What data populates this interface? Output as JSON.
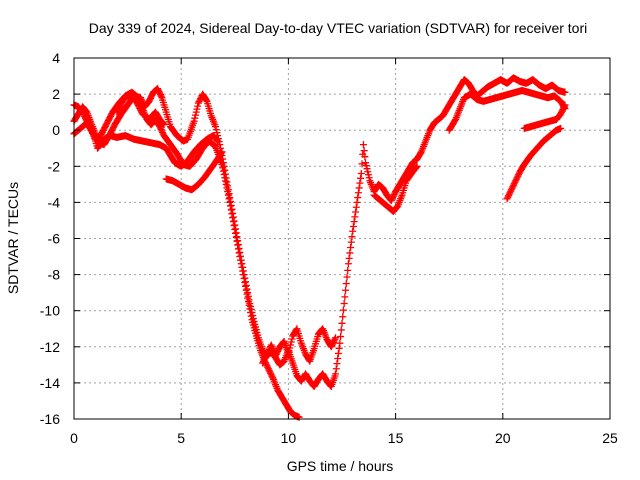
{
  "chart_data": {
    "type": "scatter",
    "title": "Day 339 of 2024, Sidereal Day-to-day VTEC variation (SDTVAR) for receiver tori",
    "xlabel": "GPS time / hours",
    "ylabel": "SDTVAR / TECUs",
    "xlim": [
      0,
      25
    ],
    "ylim": [
      -16,
      4
    ],
    "xticks": [
      "0",
      "5",
      "10",
      "15",
      "20",
      "25"
    ],
    "yticks": [
      "4",
      "2",
      "0",
      "-2",
      "-4",
      "-6",
      "-8",
      "-10",
      "-12",
      "-14",
      "-16"
    ],
    "grid": true,
    "marker": "+",
    "color": "#ff0000",
    "series": [
      {
        "name": "",
        "points": [
          [
            0.0,
            1.4
          ],
          [
            0.2,
            1.3
          ],
          [
            0.4,
            1.0
          ],
          [
            0.6,
            0.5
          ],
          [
            0.8,
            0.0
          ],
          [
            1.0,
            -0.5
          ],
          [
            1.2,
            -0.4
          ],
          [
            1.5,
            0.3
          ],
          [
            1.8,
            1.0
          ],
          [
            2.1,
            1.5
          ],
          [
            2.4,
            1.9
          ],
          [
            2.7,
            2.1
          ],
          [
            3.0,
            1.8
          ],
          [
            3.2,
            1.2
          ],
          [
            3.4,
            0.6
          ],
          [
            3.6,
            0.3
          ],
          [
            3.8,
            0.6
          ],
          [
            4.0,
            0.2
          ],
          [
            4.2,
            -0.3
          ],
          [
            4.5,
            -0.8
          ],
          [
            4.8,
            -1.3
          ],
          [
            5.1,
            -1.9
          ],
          [
            5.4,
            -2.0
          ],
          [
            5.7,
            -1.6
          ],
          [
            6.0,
            -1.0
          ],
          [
            6.3,
            -0.6
          ],
          [
            6.6,
            -0.9
          ],
          [
            6.9,
            -1.9
          ],
          [
            7.1,
            -3.0
          ],
          [
            7.3,
            -4.2
          ],
          [
            7.5,
            -5.5
          ],
          [
            7.7,
            -6.8
          ],
          [
            7.9,
            -8.0
          ],
          [
            8.1,
            -9.3
          ],
          [
            8.3,
            -10.5
          ],
          [
            8.5,
            -11.4
          ],
          [
            8.7,
            -12.2
          ],
          [
            8.9,
            -12.8
          ],
          [
            9.1,
            -13.3
          ],
          [
            9.3,
            -13.8
          ],
          [
            9.5,
            -14.4
          ],
          [
            9.7,
            -14.8
          ],
          [
            9.9,
            -15.2
          ],
          [
            10.1,
            -15.6
          ],
          [
            10.3,
            -15.8
          ],
          [
            10.5,
            -15.9
          ]
        ]
      },
      {
        "name": "",
        "points": [
          [
            0.0,
            0.5
          ],
          [
            0.2,
            0.9
          ],
          [
            0.4,
            1.3
          ],
          [
            0.6,
            1.0
          ],
          [
            0.8,
            0.4
          ],
          [
            1.0,
            -0.2
          ],
          [
            1.2,
            -0.7
          ],
          [
            1.4,
            -0.8
          ],
          [
            1.6,
            -0.4
          ],
          [
            1.9,
            0.3
          ],
          [
            2.2,
            0.9
          ],
          [
            2.5,
            1.4
          ],
          [
            2.8,
            1.9
          ],
          [
            3.1,
            1.8
          ],
          [
            3.3,
            1.3
          ],
          [
            3.5,
            1.6
          ],
          [
            3.7,
            2.1
          ],
          [
            3.9,
            2.3
          ],
          [
            4.1,
            1.8
          ],
          [
            4.3,
            1.0
          ],
          [
            4.5,
            0.2
          ],
          [
            4.8,
            -0.3
          ],
          [
            5.1,
            -0.6
          ],
          [
            5.3,
            -0.5
          ],
          [
            5.6,
            0.5
          ],
          [
            5.8,
            1.5
          ],
          [
            6.0,
            2.0
          ],
          [
            6.2,
            1.6
          ],
          [
            6.4,
            0.8
          ],
          [
            6.6,
            0.2
          ],
          [
            6.8,
            -0.8
          ],
          [
            7.0,
            -2.0
          ],
          [
            7.2,
            -3.3
          ],
          [
            7.4,
            -4.6
          ],
          [
            7.6,
            -5.9
          ],
          [
            7.8,
            -7.2
          ],
          [
            8.0,
            -8.4
          ],
          [
            8.2,
            -9.6
          ],
          [
            8.4,
            -10.6
          ],
          [
            8.6,
            -11.5
          ],
          [
            8.8,
            -12.2
          ],
          [
            9.0,
            -12.5
          ],
          [
            9.2,
            -12.3
          ],
          [
            9.4,
            -12.6
          ],
          [
            9.6,
            -13.0
          ],
          [
            9.8,
            -12.8
          ],
          [
            10.0,
            -12.2
          ],
          [
            10.2,
            -12.9
          ],
          [
            10.4,
            -13.6
          ],
          [
            10.6,
            -13.9
          ],
          [
            10.8,
            -13.5
          ],
          [
            11.0,
            -13.9
          ],
          [
            11.2,
            -14.2
          ],
          [
            11.4,
            -13.8
          ],
          [
            11.6,
            -13.5
          ],
          [
            11.8,
            -13.9
          ],
          [
            12.0,
            -14.2
          ],
          [
            12.2,
            -13.5
          ],
          [
            12.4,
            -11.8
          ],
          [
            12.6,
            -9.6
          ],
          [
            12.8,
            -7.4
          ],
          [
            13.0,
            -5.6
          ],
          [
            13.2,
            -4.0
          ],
          [
            13.4,
            -2.4
          ],
          [
            13.5,
            -0.8
          ],
          [
            13.6,
            -1.8
          ],
          [
            13.8,
            -2.8
          ],
          [
            14.0,
            -3.4
          ],
          [
            14.2,
            -3.0
          ],
          [
            14.4,
            -3.2
          ],
          [
            14.6,
            -3.6
          ],
          [
            14.8,
            -3.9
          ],
          [
            15.0,
            -3.4
          ],
          [
            15.2,
            -3.0
          ],
          [
            15.4,
            -2.6
          ],
          [
            15.6,
            -2.2
          ],
          [
            15.8,
            -1.8
          ],
          [
            16.0,
            -1.6
          ],
          [
            16.2,
            -1.2
          ],
          [
            16.4,
            -0.6
          ],
          [
            16.6,
            0.0
          ],
          [
            16.8,
            0.4
          ],
          [
            17.0,
            0.6
          ],
          [
            17.2,
            0.8
          ],
          [
            17.4,
            1.2
          ],
          [
            17.6,
            1.6
          ],
          [
            17.8,
            2.0
          ],
          [
            18.0,
            2.4
          ],
          [
            18.2,
            2.8
          ],
          [
            18.4,
            2.6
          ],
          [
            18.6,
            2.2
          ],
          [
            18.8,
            1.9
          ],
          [
            19.0,
            2.1
          ],
          [
            19.3,
            2.4
          ],
          [
            19.6,
            2.6
          ],
          [
            19.9,
            2.8
          ],
          [
            20.2,
            2.6
          ],
          [
            20.5,
            2.9
          ],
          [
            20.8,
            2.7
          ],
          [
            21.1,
            2.6
          ],
          [
            21.4,
            2.8
          ],
          [
            21.7,
            2.5
          ],
          [
            22.0,
            2.3
          ],
          [
            22.3,
            2.5
          ],
          [
            22.6,
            2.2
          ],
          [
            22.9,
            2.1
          ]
        ]
      },
      {
        "name": "",
        "points": [
          [
            0.0,
            -0.2
          ],
          [
            0.3,
            0.1
          ],
          [
            0.6,
            0.4
          ],
          [
            0.9,
            -0.2
          ],
          [
            1.1,
            -1.0
          ],
          [
            1.4,
            -0.5
          ],
          [
            1.7,
            -0.3
          ],
          [
            2.0,
            -0.4
          ],
          [
            2.4,
            -0.3
          ],
          [
            2.8,
            -0.5
          ],
          [
            3.2,
            -0.6
          ],
          [
            3.6,
            -0.7
          ],
          [
            4.0,
            -0.8
          ],
          [
            4.3,
            -1.0
          ],
          [
            4.5,
            -1.4
          ],
          [
            4.7,
            -1.8
          ],
          [
            5.0,
            -2.0
          ],
          [
            5.3,
            -1.7
          ],
          [
            5.6,
            -1.2
          ],
          [
            5.9,
            -0.8
          ],
          [
            6.2,
            -0.5
          ],
          [
            6.5,
            -0.3
          ],
          [
            6.7,
            -0.6
          ]
        ]
      },
      {
        "name": "",
        "points": [
          [
            2.0,
            1.0
          ],
          [
            2.3,
            1.7
          ],
          [
            2.6,
            2.0
          ],
          [
            2.9,
            1.6
          ],
          [
            3.2,
            0.9
          ],
          [
            3.5,
            0.6
          ],
          [
            3.8,
            1.0
          ],
          [
            4.0,
            0.6
          ],
          [
            4.2,
            0.3
          ]
        ]
      },
      {
        "name": "",
        "points": [
          [
            4.3,
            -2.7
          ],
          [
            4.6,
            -2.8
          ],
          [
            4.9,
            -3.0
          ],
          [
            5.2,
            -3.2
          ],
          [
            5.5,
            -3.3
          ],
          [
            5.8,
            -3.0
          ],
          [
            6.1,
            -2.6
          ],
          [
            6.4,
            -2.1
          ],
          [
            6.7,
            -1.6
          ],
          [
            6.9,
            -1.2
          ]
        ]
      },
      {
        "name": "",
        "points": [
          [
            8.8,
            -12.9
          ],
          [
            9.0,
            -12.4
          ],
          [
            9.2,
            -11.9
          ],
          [
            9.4,
            -12.5
          ],
          [
            9.6,
            -12.0
          ],
          [
            9.8,
            -11.7
          ],
          [
            10.0,
            -12.4
          ],
          [
            10.2,
            -11.4
          ],
          [
            10.4,
            -11.0
          ],
          [
            10.6,
            -11.8
          ],
          [
            10.8,
            -12.4
          ],
          [
            11.0,
            -12.8
          ],
          [
            11.2,
            -12.1
          ],
          [
            11.4,
            -11.3
          ],
          [
            11.6,
            -11.0
          ],
          [
            11.8,
            -11.6
          ],
          [
            12.0,
            -12.0
          ],
          [
            12.2,
            -11.5
          ]
        ]
      },
      {
        "name": "",
        "points": [
          [
            14.0,
            -3.6
          ],
          [
            14.3,
            -3.9
          ],
          [
            14.6,
            -4.2
          ],
          [
            14.9,
            -4.5
          ],
          [
            15.1,
            -4.2
          ],
          [
            15.3,
            -3.6
          ],
          [
            15.5,
            -2.8
          ],
          [
            15.8,
            -2.3
          ],
          [
            16.0,
            -2.0
          ]
        ]
      },
      {
        "name": "",
        "points": [
          [
            17.5,
            0.0
          ],
          [
            17.8,
            0.6
          ],
          [
            18.0,
            1.2
          ],
          [
            18.2,
            1.8
          ],
          [
            18.5,
            2.0
          ],
          [
            18.8,
            1.7
          ],
          [
            19.1,
            1.6
          ],
          [
            19.4,
            1.7
          ],
          [
            19.7,
            1.8
          ],
          [
            20.0,
            1.9
          ],
          [
            20.3,
            2.0
          ],
          [
            20.6,
            2.1
          ],
          [
            20.9,
            2.2
          ],
          [
            21.2,
            2.1
          ],
          [
            21.5,
            2.0
          ],
          [
            21.8,
            1.9
          ],
          [
            22.1,
            1.8
          ],
          [
            22.4,
            1.9
          ],
          [
            22.7,
            1.6
          ],
          [
            22.9,
            1.2
          ]
        ]
      },
      {
        "name": "",
        "points": [
          [
            20.2,
            -3.8
          ],
          [
            20.4,
            -3.3
          ],
          [
            20.6,
            -2.8
          ],
          [
            20.8,
            -2.3
          ],
          [
            21.0,
            -1.9
          ],
          [
            21.3,
            -1.4
          ],
          [
            21.6,
            -1.0
          ],
          [
            21.9,
            -0.6
          ],
          [
            22.2,
            -0.3
          ],
          [
            22.5,
            0.0
          ],
          [
            22.7,
            0.1
          ]
        ]
      },
      {
        "name": "",
        "points": [
          [
            21.0,
            0.1
          ],
          [
            21.3,
            0.2
          ],
          [
            21.6,
            0.3
          ],
          [
            21.9,
            0.4
          ],
          [
            22.2,
            0.5
          ],
          [
            22.5,
            0.6
          ],
          [
            22.7,
            0.9
          ],
          [
            22.9,
            1.4
          ]
        ]
      }
    ]
  }
}
